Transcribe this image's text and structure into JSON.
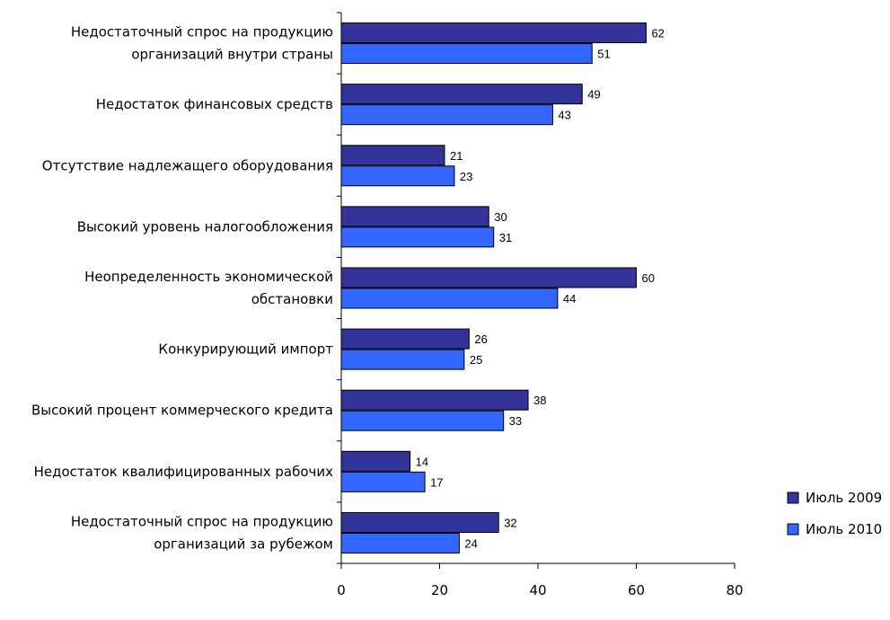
{
  "chart_data": {
    "type": "bar",
    "orientation": "horizontal",
    "categories": [
      [
        "Недостаточный спрос на продукцию",
        "организаций внутри страны"
      ],
      [
        "Недостаток финансовых средств"
      ],
      [
        "Отсутствие надлежащего оборудования"
      ],
      [
        "Высокий уровень налогообложения"
      ],
      [
        "Неопределенность экономической",
        "обстановки"
      ],
      [
        "Конкурирующий импорт"
      ],
      [
        "Высокий процент коммерческого  кредита"
      ],
      [
        "Недостаток квалифицированных рабочих"
      ],
      [
        "Недостаточный спрос на продукцию",
        "организаций за рубежом"
      ]
    ],
    "series": [
      {
        "name": "Июль 2009",
        "color": "#333399",
        "values": [
          62,
          49,
          21,
          30,
          60,
          26,
          38,
          14,
          32
        ]
      },
      {
        "name": "Июль 2010",
        "color": "#3366ff",
        "values": [
          51,
          43,
          23,
          31,
          44,
          25,
          33,
          17,
          24
        ]
      }
    ],
    "xlim": [
      0,
      80
    ],
    "xticks": [
      0,
      20,
      40,
      60,
      80
    ],
    "grid": false,
    "legend_position": "right"
  }
}
